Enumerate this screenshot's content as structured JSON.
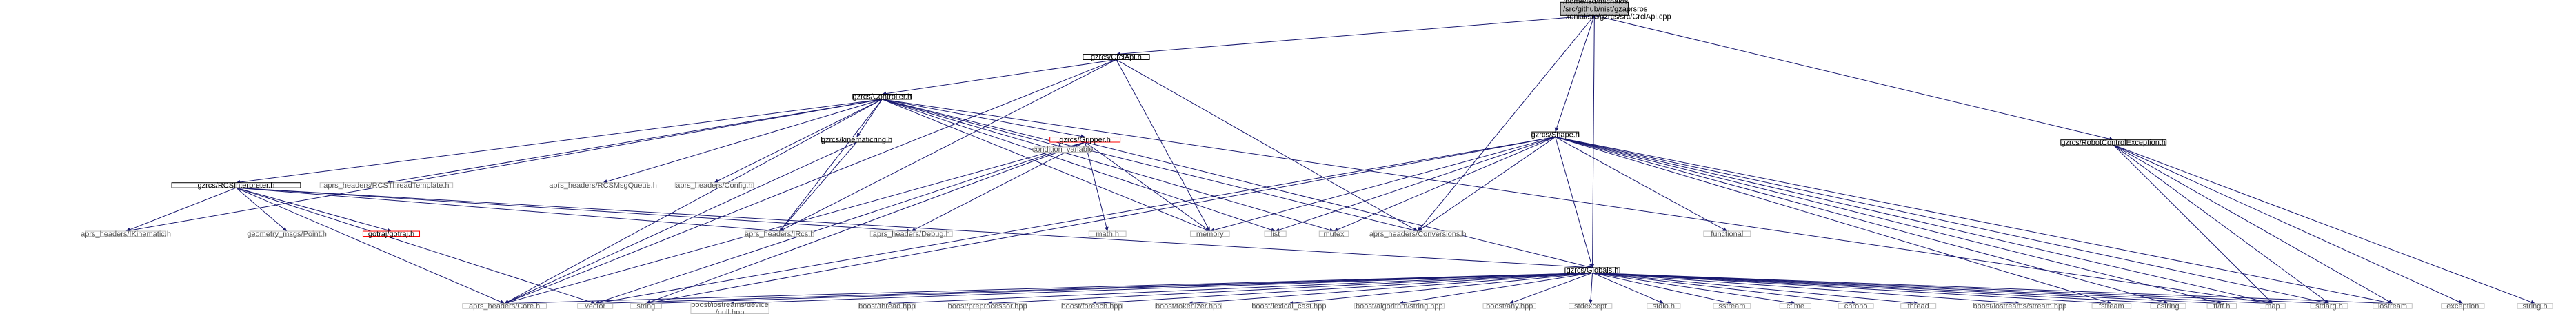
{
  "colors": {
    "edge": "#191970",
    "node_border": "#000000",
    "missing_border": "#bfbfbf",
    "red_border": "#ff0000",
    "root_fill": "#bfbfbf"
  },
  "nodes": [
    {
      "id": "root",
      "lines": [
        "/home/isd/michalos",
        "/src/github/nist/gzaprsros",
        "-xenial/src/gzrcs/src/CrclApi.cpp"
      ],
      "kind": "root"
    },
    {
      "id": "crclapi",
      "lines": [
        "gzrcs/CrclApi.h"
      ],
      "kind": "normal"
    },
    {
      "id": "controller",
      "lines": [
        "gzrcs/Controller.h"
      ],
      "kind": "normal"
    },
    {
      "id": "shape",
      "lines": [
        "gzrcs/Shape.h"
      ],
      "kind": "normal"
    },
    {
      "id": "robotctrlexc",
      "lines": [
        "gzrcs/RobotControlException.h"
      ],
      "kind": "normal"
    },
    {
      "id": "condvar",
      "lines": [
        "condition_variable"
      ],
      "kind": "gray"
    },
    {
      "id": "rcsinterp",
      "lines": [
        "gzrcs/RCSInterpreter.h"
      ],
      "kind": "normal"
    },
    {
      "id": "rcsthread",
      "lines": [
        "aprs_headers/RCSThreadTemplate.h"
      ],
      "kind": "gray"
    },
    {
      "id": "rcsmsgq",
      "lines": [
        "aprs_headers/RCSMsgQueue.h"
      ],
      "kind": "gray"
    },
    {
      "id": "config",
      "lines": [
        "aprs_headers/Config.h"
      ],
      "kind": "gray"
    },
    {
      "id": "kinematicring",
      "lines": [
        "gzrcs/kinematicring.h"
      ],
      "kind": "normal"
    },
    {
      "id": "gripper",
      "lines": [
        "gzrcs/Gripper.h"
      ],
      "kind": "red"
    },
    {
      "id": "ikinematic",
      "lines": [
        "aprs_headers/IKinematic.h"
      ],
      "kind": "gray"
    },
    {
      "id": "geompoint",
      "lines": [
        "geometry_msgs/Point.h"
      ],
      "kind": "gray"
    },
    {
      "id": "gotraj",
      "lines": [
        "gotraj/gotraj.h"
      ],
      "kind": "red"
    },
    {
      "id": "ircs",
      "lines": [
        "aprs_headers/IRcs.h"
      ],
      "kind": "gray"
    },
    {
      "id": "debug",
      "lines": [
        "aprs_headers/Debug.h"
      ],
      "kind": "gray"
    },
    {
      "id": "math",
      "lines": [
        "math.h"
      ],
      "kind": "gray"
    },
    {
      "id": "memory",
      "lines": [
        "memory"
      ],
      "kind": "gray"
    },
    {
      "id": "list",
      "lines": [
        "list"
      ],
      "kind": "gray"
    },
    {
      "id": "mutex",
      "lines": [
        "mutex"
      ],
      "kind": "gray"
    },
    {
      "id": "conversions",
      "lines": [
        "aprs_headers/Conversions.h"
      ],
      "kind": "gray"
    },
    {
      "id": "functional",
      "lines": [
        "functional"
      ],
      "kind": "gray"
    },
    {
      "id": "globals",
      "lines": [
        "gzrcs/Globals.h"
      ],
      "kind": "normal"
    },
    {
      "id": "core",
      "lines": [
        "aprs_headers/Core.h"
      ],
      "kind": "gray"
    },
    {
      "id": "vector",
      "lines": [
        "vector"
      ],
      "kind": "gray"
    },
    {
      "id": "string",
      "lines": [
        "string"
      ],
      "kind": "gray"
    },
    {
      "id": "nullhpp",
      "lines": [
        "boost/iostreams/device",
        "/null.hpp"
      ],
      "kind": "gray"
    },
    {
      "id": "thread_hpp",
      "lines": [
        "boost/thread.hpp"
      ],
      "kind": "gray"
    },
    {
      "id": "preproc",
      "lines": [
        "boost/preprocessor.hpp"
      ],
      "kind": "gray"
    },
    {
      "id": "foreach",
      "lines": [
        "boost/foreach.hpp"
      ],
      "kind": "gray"
    },
    {
      "id": "tokenizer",
      "lines": [
        "boost/tokenizer.hpp"
      ],
      "kind": "gray"
    },
    {
      "id": "lexcast",
      "lines": [
        "boost/lexical_cast.hpp"
      ],
      "kind": "gray"
    },
    {
      "id": "algstring",
      "lines": [
        "boost/algorithm/string.hpp"
      ],
      "kind": "gray"
    },
    {
      "id": "anyhpp",
      "lines": [
        "boost/any.hpp"
      ],
      "kind": "gray"
    },
    {
      "id": "stdexcept",
      "lines": [
        "stdexcept"
      ],
      "kind": "gray"
    },
    {
      "id": "stdio",
      "lines": [
        "stdio.h"
      ],
      "kind": "gray"
    },
    {
      "id": "sstream",
      "lines": [
        "sstream"
      ],
      "kind": "gray"
    },
    {
      "id": "ctime",
      "lines": [
        "ctime"
      ],
      "kind": "gray"
    },
    {
      "id": "chrono",
      "lines": [
        "chrono"
      ],
      "kind": "gray"
    },
    {
      "id": "thread",
      "lines": [
        "thread"
      ],
      "kind": "gray"
    },
    {
      "id": "streamhpp",
      "lines": [
        "boost/iostreams/stream.hpp"
      ],
      "kind": "gray"
    },
    {
      "id": "fstream",
      "lines": [
        "fstream"
      ],
      "kind": "gray"
    },
    {
      "id": "cstring",
      "lines": [
        "cstring"
      ],
      "kind": "gray"
    },
    {
      "id": "tfh",
      "lines": [
        "tf/tf.h"
      ],
      "kind": "gray"
    },
    {
      "id": "map",
      "lines": [
        "map"
      ],
      "kind": "gray"
    },
    {
      "id": "stdarg",
      "lines": [
        "stdarg.h"
      ],
      "kind": "gray"
    },
    {
      "id": "iostream",
      "lines": [
        "iostream"
      ],
      "kind": "gray"
    },
    {
      "id": "exception",
      "lines": [
        "exception"
      ],
      "kind": "gray"
    },
    {
      "id": "stringh",
      "lines": [
        "string.h"
      ],
      "kind": "gray"
    }
  ],
  "edges": [
    [
      "root",
      "crclapi"
    ],
    [
      "root",
      "shape"
    ],
    [
      "root",
      "globals"
    ],
    [
      "root",
      "robotctrlexc"
    ],
    [
      "root",
      "conversions"
    ],
    [
      "crclapi",
      "controller"
    ],
    [
      "crclapi",
      "ircs"
    ],
    [
      "crclapi",
      "memory"
    ],
    [
      "crclapi",
      "conversions"
    ],
    [
      "crclapi",
      "core"
    ],
    [
      "controller",
      "condvar"
    ],
    [
      "controller",
      "rcsinterp"
    ],
    [
      "controller",
      "rcsthread"
    ],
    [
      "controller",
      "rcsmsgq"
    ],
    [
      "controller",
      "config"
    ],
    [
      "controller",
      "kinematicring"
    ],
    [
      "controller",
      "gripper"
    ],
    [
      "controller",
      "ikinematic"
    ],
    [
      "controller",
      "ircs"
    ],
    [
      "controller",
      "memory"
    ],
    [
      "controller",
      "list"
    ],
    [
      "controller",
      "mutex"
    ],
    [
      "controller",
      "core"
    ],
    [
      "controller",
      "map"
    ],
    [
      "controller",
      "conversions"
    ],
    [
      "rcsinterp",
      "ikinematic"
    ],
    [
      "rcsinterp",
      "geompoint"
    ],
    [
      "rcsinterp",
      "gotraj"
    ],
    [
      "rcsinterp",
      "ircs"
    ],
    [
      "rcsinterp",
      "debug"
    ],
    [
      "rcsinterp",
      "globals"
    ],
    [
      "rcsinterp",
      "vector"
    ],
    [
      "rcsinterp",
      "core"
    ],
    [
      "kinematicring",
      "ircs"
    ],
    [
      "kinematicring",
      "core"
    ],
    [
      "gripper",
      "math"
    ],
    [
      "gripper",
      "memory"
    ],
    [
      "gripper",
      "debug"
    ],
    [
      "gripper",
      "globals"
    ],
    [
      "gripper",
      "vector"
    ],
    [
      "gripper",
      "string"
    ],
    [
      "gripper",
      "core"
    ],
    [
      "shape",
      "memory"
    ],
    [
      "shape",
      "list"
    ],
    [
      "shape",
      "mutex"
    ],
    [
      "shape",
      "conversions"
    ],
    [
      "shape",
      "functional"
    ],
    [
      "shape",
      "globals"
    ],
    [
      "shape",
      "vector"
    ],
    [
      "shape",
      "string"
    ],
    [
      "shape",
      "map"
    ],
    [
      "shape",
      "tfh"
    ],
    [
      "shape",
      "cstring"
    ],
    [
      "shape",
      "fstream"
    ],
    [
      "shape",
      "stdarg"
    ],
    [
      "shape",
      "iostream"
    ],
    [
      "globals",
      "core"
    ],
    [
      "globals",
      "vector"
    ],
    [
      "globals",
      "string"
    ],
    [
      "globals",
      "nullhpp"
    ],
    [
      "globals",
      "thread_hpp"
    ],
    [
      "globals",
      "preproc"
    ],
    [
      "globals",
      "foreach"
    ],
    [
      "globals",
      "tokenizer"
    ],
    [
      "globals",
      "lexcast"
    ],
    [
      "globals",
      "algstring"
    ],
    [
      "globals",
      "anyhpp"
    ],
    [
      "globals",
      "stdexcept"
    ],
    [
      "globals",
      "stdio"
    ],
    [
      "globals",
      "sstream"
    ],
    [
      "globals",
      "ctime"
    ],
    [
      "globals",
      "chrono"
    ],
    [
      "globals",
      "thread"
    ],
    [
      "globals",
      "streamhpp"
    ],
    [
      "globals",
      "fstream"
    ],
    [
      "globals",
      "cstring"
    ],
    [
      "globals",
      "tfh"
    ],
    [
      "globals",
      "map"
    ],
    [
      "globals",
      "stdarg"
    ],
    [
      "globals",
      "iostream"
    ],
    [
      "robotctrlexc",
      "map"
    ],
    [
      "robotctrlexc",
      "stdarg"
    ],
    [
      "robotctrlexc",
      "iostream"
    ],
    [
      "robotctrlexc",
      "exception"
    ],
    [
      "robotctrlexc",
      "stringh"
    ]
  ]
}
